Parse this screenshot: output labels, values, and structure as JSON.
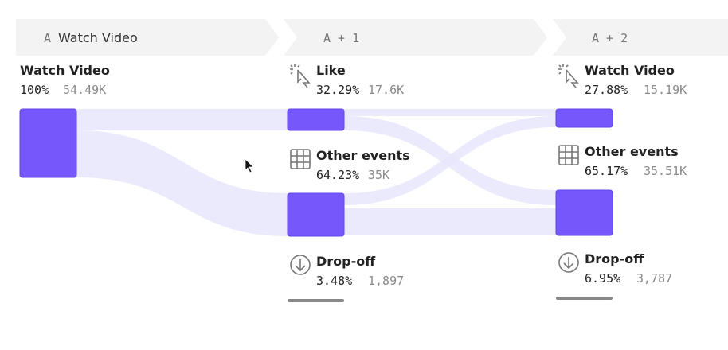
{
  "columns": [
    {
      "step": "A",
      "label": "Watch Video",
      "nodes": [
        {
          "name": "Watch Video",
          "percent": "100%",
          "count": "54.49K"
        }
      ]
    },
    {
      "label": "A + 1",
      "nodes": [
        {
          "name": "Like",
          "percent": "32.29%",
          "count": "17.6K"
        },
        {
          "name": "Other events",
          "percent": "64.23%",
          "count": "35K"
        },
        {
          "name": "Drop-off",
          "percent": "3.48%",
          "count": "1,897"
        }
      ]
    },
    {
      "label": "A + 2",
      "nodes": [
        {
          "name": "Watch Video",
          "percent": "27.88%",
          "count": "15.19K"
        },
        {
          "name": "Other events",
          "percent": "65.17%",
          "count": "35.51K"
        },
        {
          "name": "Drop-off",
          "percent": "6.95%",
          "count": "3,787"
        }
      ]
    }
  ]
}
